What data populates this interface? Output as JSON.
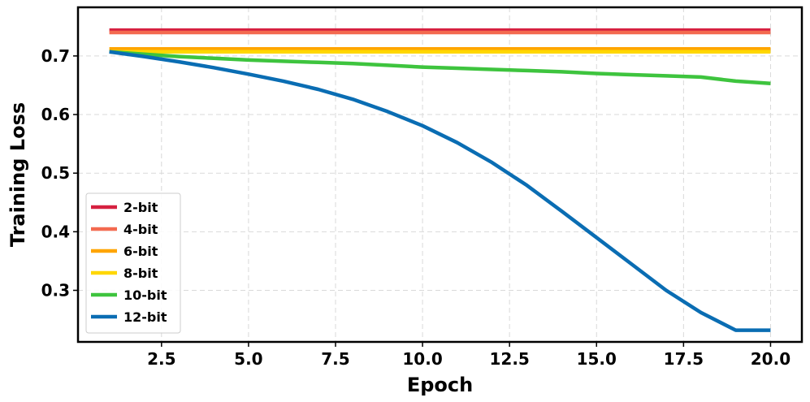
{
  "chart_data": {
    "type": "line",
    "title": "",
    "xlabel": "Epoch",
    "ylabel": "Training Loss",
    "xlim": [
      0.1,
      20.9
    ],
    "ylim": [
      0.212,
      0.783
    ],
    "x_ticks": [
      2.5,
      5.0,
      7.5,
      10.0,
      12.5,
      15.0,
      17.5,
      20.0
    ],
    "x_tick_labels": [
      "2.5",
      "5.0",
      "7.5",
      "10.0",
      "12.5",
      "15.0",
      "17.5",
      "20.0"
    ],
    "y_ticks": [
      0.3,
      0.4,
      0.5,
      0.6,
      0.7
    ],
    "y_tick_labels": [
      "0.3",
      "0.4",
      "0.5",
      "0.6",
      "0.7"
    ],
    "grid": true,
    "legend_position": "lower-left",
    "x": [
      1,
      2,
      3,
      4,
      5,
      6,
      7,
      8,
      9,
      10,
      11,
      12,
      13,
      14,
      15,
      16,
      17,
      18,
      19,
      20
    ],
    "series": [
      {
        "name": "2-bit",
        "color": "#d62040",
        "values": [
          0.744,
          0.744,
          0.744,
          0.744,
          0.744,
          0.744,
          0.744,
          0.744,
          0.744,
          0.744,
          0.744,
          0.744,
          0.744,
          0.744,
          0.744,
          0.744,
          0.744,
          0.744,
          0.744,
          0.744
        ]
      },
      {
        "name": "4-bit",
        "color": "#f36a50",
        "values": [
          0.74,
          0.74,
          0.74,
          0.74,
          0.74,
          0.74,
          0.74,
          0.74,
          0.74,
          0.74,
          0.74,
          0.74,
          0.74,
          0.74,
          0.74,
          0.74,
          0.74,
          0.74,
          0.74,
          0.74
        ]
      },
      {
        "name": "6-bit",
        "color": "#ffa500",
        "values": [
          0.712,
          0.712,
          0.712,
          0.712,
          0.712,
          0.712,
          0.712,
          0.712,
          0.712,
          0.712,
          0.712,
          0.712,
          0.712,
          0.712,
          0.712,
          0.712,
          0.712,
          0.712,
          0.712,
          0.712
        ]
      },
      {
        "name": "8-bit",
        "color": "#ffd700",
        "values": [
          0.707,
          0.707,
          0.707,
          0.707,
          0.707,
          0.707,
          0.707,
          0.707,
          0.707,
          0.707,
          0.707,
          0.707,
          0.707,
          0.707,
          0.707,
          0.707,
          0.707,
          0.707,
          0.707,
          0.707
        ]
      },
      {
        "name": "10-bit",
        "color": "#3ec43e",
        "values": [
          0.707,
          0.703,
          0.699,
          0.696,
          0.693,
          0.691,
          0.689,
          0.687,
          0.684,
          0.681,
          0.679,
          0.677,
          0.675,
          0.673,
          0.67,
          0.668,
          0.666,
          0.664,
          0.657,
          0.653
        ]
      },
      {
        "name": "12-bit",
        "color": "#0a6db3",
        "values": [
          0.707,
          0.699,
          0.69,
          0.68,
          0.669,
          0.657,
          0.643,
          0.626,
          0.605,
          0.581,
          0.552,
          0.518,
          0.479,
          0.435,
          0.39,
          0.345,
          0.3,
          0.262,
          0.232,
          0.232
        ]
      }
    ]
  }
}
